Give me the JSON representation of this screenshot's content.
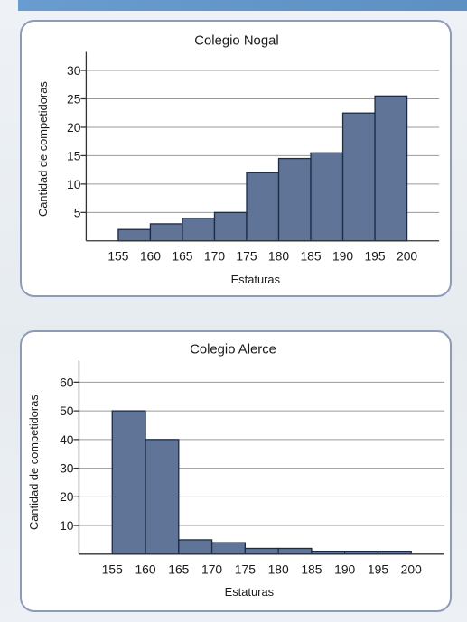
{
  "colors": {
    "bar_fill": "#5f7496",
    "bar_stroke": "#1c2a44",
    "panel_border": "#8e9bb8",
    "grid": "#9a9a9a"
  },
  "chart_data": [
    {
      "type": "bar",
      "title": "Colegio Nogal",
      "xlabel": "Estaturas",
      "ylabel": "Cantidad de competidoras",
      "x_ticks": [
        155,
        160,
        165,
        170,
        175,
        180,
        185,
        190,
        195,
        200
      ],
      "bins": [
        [
          155,
          160
        ],
        [
          160,
          165
        ],
        [
          165,
          170
        ],
        [
          170,
          175
        ],
        [
          175,
          180
        ],
        [
          180,
          185
        ],
        [
          185,
          190
        ],
        [
          190,
          195
        ],
        [
          195,
          200
        ]
      ],
      "values": [
        2,
        3,
        4,
        5,
        12,
        14.5,
        15.5,
        22.5,
        25.5
      ],
      "y_ticks": [
        5,
        10,
        15,
        20,
        25,
        30
      ],
      "ylim": [
        0,
        32
      ],
      "xlim": [
        150,
        205
      ],
      "grid": "horizontal"
    },
    {
      "type": "bar",
      "title": "Colegio Alerce",
      "xlabel": "Estaturas",
      "ylabel": "Cantidad de competidoras",
      "x_ticks": [
        155,
        160,
        165,
        170,
        175,
        180,
        185,
        190,
        195,
        200
      ],
      "bins": [
        [
          155,
          160
        ],
        [
          160,
          165
        ],
        [
          165,
          170
        ],
        [
          170,
          175
        ],
        [
          175,
          180
        ],
        [
          180,
          185
        ],
        [
          185,
          190
        ],
        [
          190,
          195
        ],
        [
          195,
          200
        ]
      ],
      "values": [
        50,
        40,
        5,
        4,
        2,
        2,
        1,
        1,
        1
      ],
      "y_ticks": [
        10,
        20,
        30,
        40,
        50,
        60
      ],
      "ylim": [
        0,
        65
      ],
      "xlim": [
        150,
        205
      ],
      "grid": "horizontal"
    }
  ]
}
